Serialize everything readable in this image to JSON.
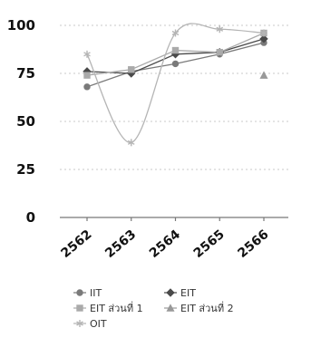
{
  "chart_data": {
    "type": "line",
    "categories": [
      "2562",
      "2563",
      "2564",
      "2565",
      "2566"
    ],
    "ylim": [
      0,
      100
    ],
    "yticks": [
      0,
      25,
      50,
      75,
      100
    ],
    "grid": true,
    "legend_position": "bottom",
    "series": [
      {
        "name": "IIT",
        "values": [
          68,
          76,
          80,
          85,
          91
        ],
        "color": "#7a7a7a",
        "marker": "circle",
        "dash": ""
      },
      {
        "name": "EIT",
        "values": [
          76,
          75,
          85,
          86,
          93
        ],
        "color": "#4a4a4a",
        "marker": "diamond",
        "dash": ""
      },
      {
        "name": "EIT ส่วนที่ 1",
        "values": [
          74,
          77,
          87,
          86,
          96
        ],
        "color": "#aaaaaa",
        "marker": "square",
        "dash": ""
      },
      {
        "name": "EIT ส่วนที่ 2",
        "values": [
          null,
          null,
          null,
          null,
          74
        ],
        "color": "#999999",
        "marker": "triangle",
        "dash": ""
      },
      {
        "name": "OIT",
        "values": [
          85,
          39,
          96,
          98,
          96
        ],
        "color": "#b5b5b5",
        "marker": "star",
        "dash": ""
      }
    ]
  }
}
